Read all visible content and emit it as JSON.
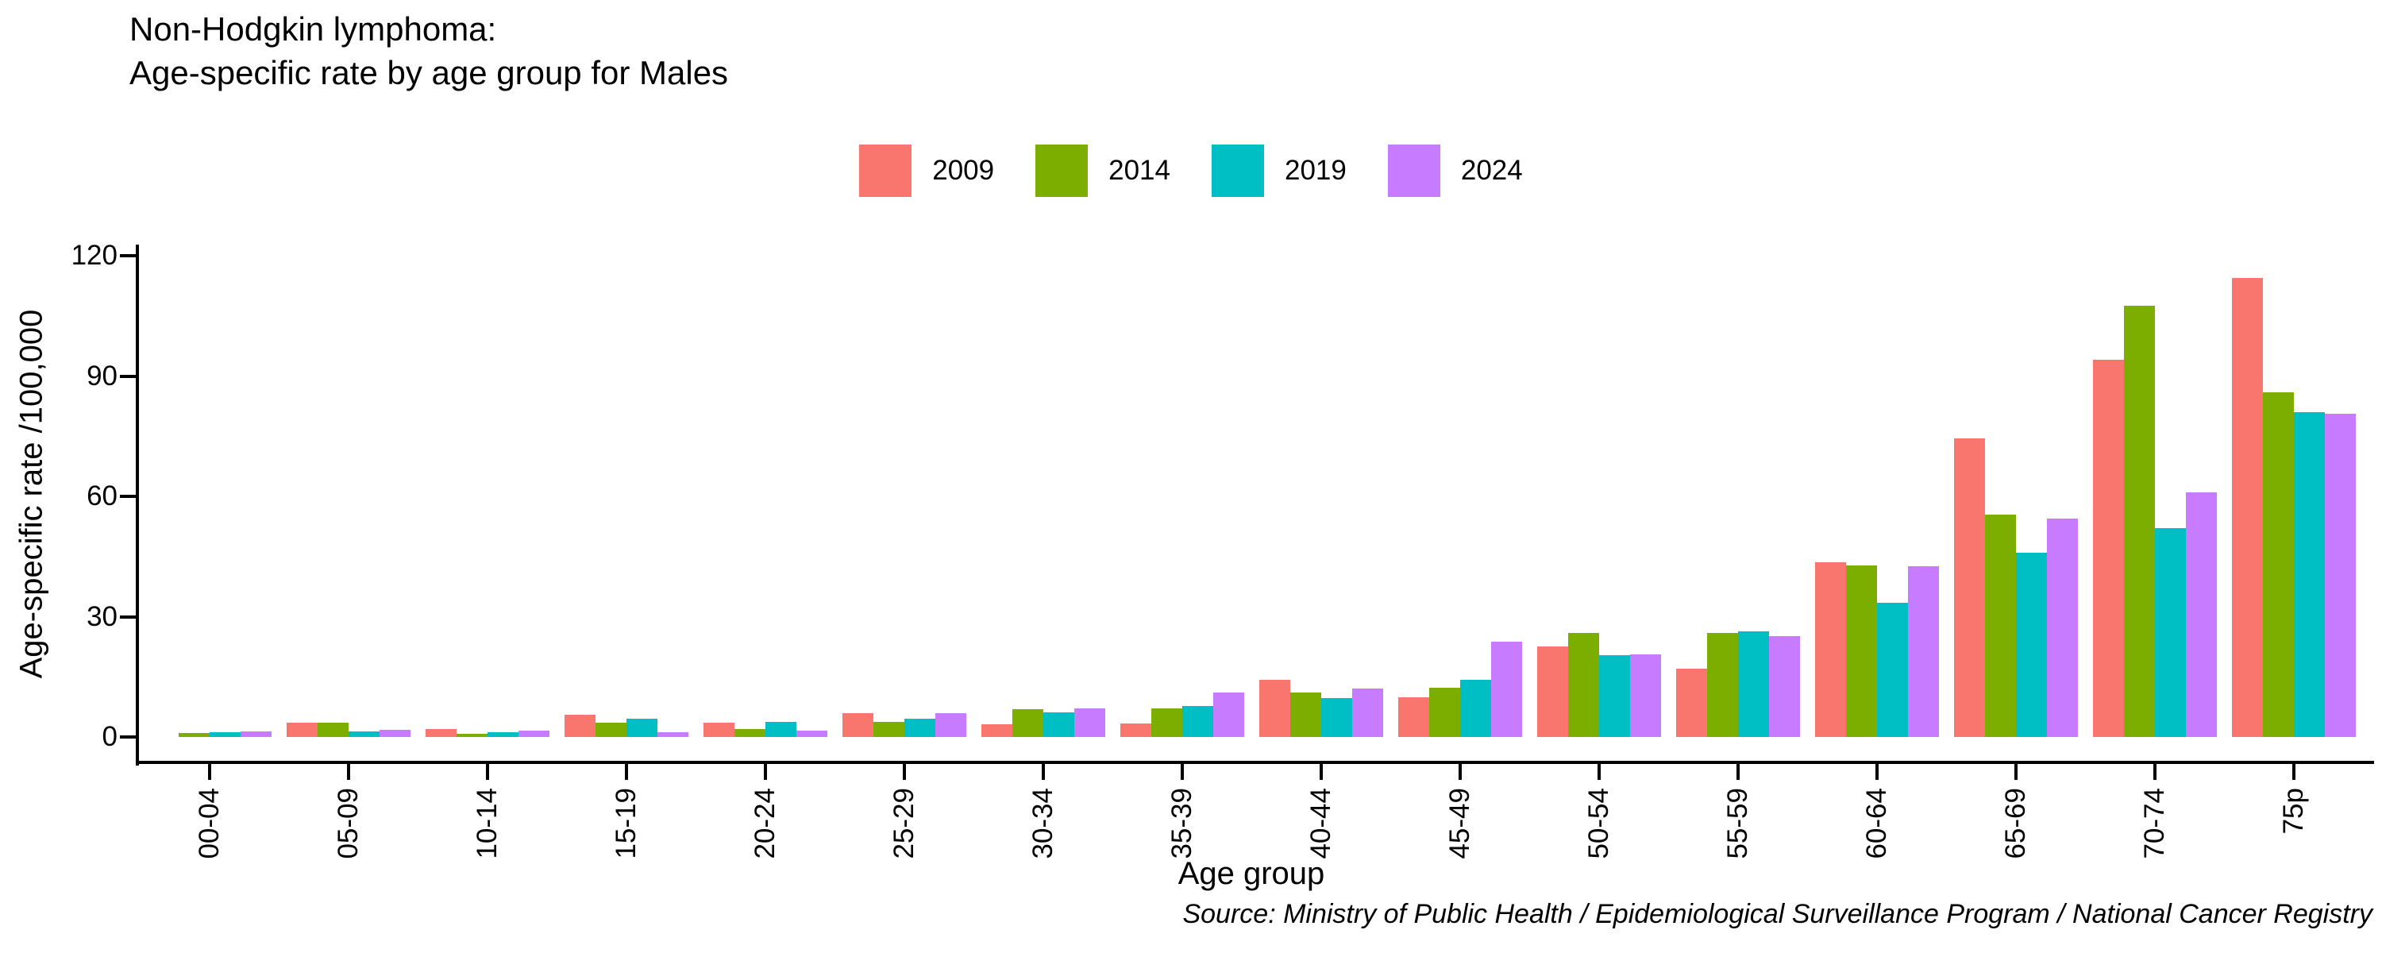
{
  "title": {
    "line1": "Non-Hodgkin lymphoma:",
    "line2": "Age-specific rate by age group for Males"
  },
  "source": "Source: Ministry of Public Health / Epidemiological Surveillance Program / National Cancer Registry",
  "chart_data": {
    "type": "bar",
    "title": "Non-Hodgkin lymphoma: Age-specific rate by age group for Males",
    "xlabel": "Age group",
    "ylabel": "Age-specific rate /100,000",
    "ylim": [
      0,
      120
    ],
    "yticks": [
      0,
      30,
      60,
      90,
      120
    ],
    "grid": false,
    "legend_position": "top-center",
    "axis_color": "#000000",
    "background_color": "#ffffff",
    "categories": [
      "00-04",
      "05-09",
      "10-14",
      "15-19",
      "20-24",
      "25-29",
      "30-34",
      "35-39",
      "40-44",
      "45-49",
      "50-54",
      "55-59",
      "60-64",
      "65-69",
      "70-74",
      "75p"
    ],
    "series": [
      {
        "name": "2009",
        "color": "#F8766D",
        "values": [
          0,
          3.5,
          2.0,
          5.5,
          3.5,
          5.9,
          3.2,
          3.4,
          14.3,
          10.0,
          22.5,
          17.0,
          43.5,
          74.5,
          94.0,
          114.5
        ]
      },
      {
        "name": "2014",
        "color": "#7CAE00",
        "values": [
          0.9,
          3.5,
          0.8,
          3.5,
          2.0,
          3.7,
          7.0,
          7.2,
          11.0,
          12.3,
          26.0,
          26.0,
          42.8,
          55.5,
          107.5,
          86.0
        ]
      },
      {
        "name": "2019",
        "color": "#00BFC4",
        "values": [
          1.2,
          1.4,
          1.2,
          4.5,
          3.8,
          4.5,
          6.2,
          7.7,
          9.8,
          14.2,
          20.3,
          26.3,
          33.5,
          46.0,
          52.0,
          81.0
        ]
      },
      {
        "name": "2024",
        "color": "#C77CFF",
        "values": [
          1.4,
          1.7,
          1.6,
          1.1,
          1.5,
          5.9,
          7.1,
          11.0,
          12.0,
          23.7,
          20.5,
          25.2,
          42.5,
          54.5,
          61.0,
          80.5
        ]
      }
    ]
  }
}
